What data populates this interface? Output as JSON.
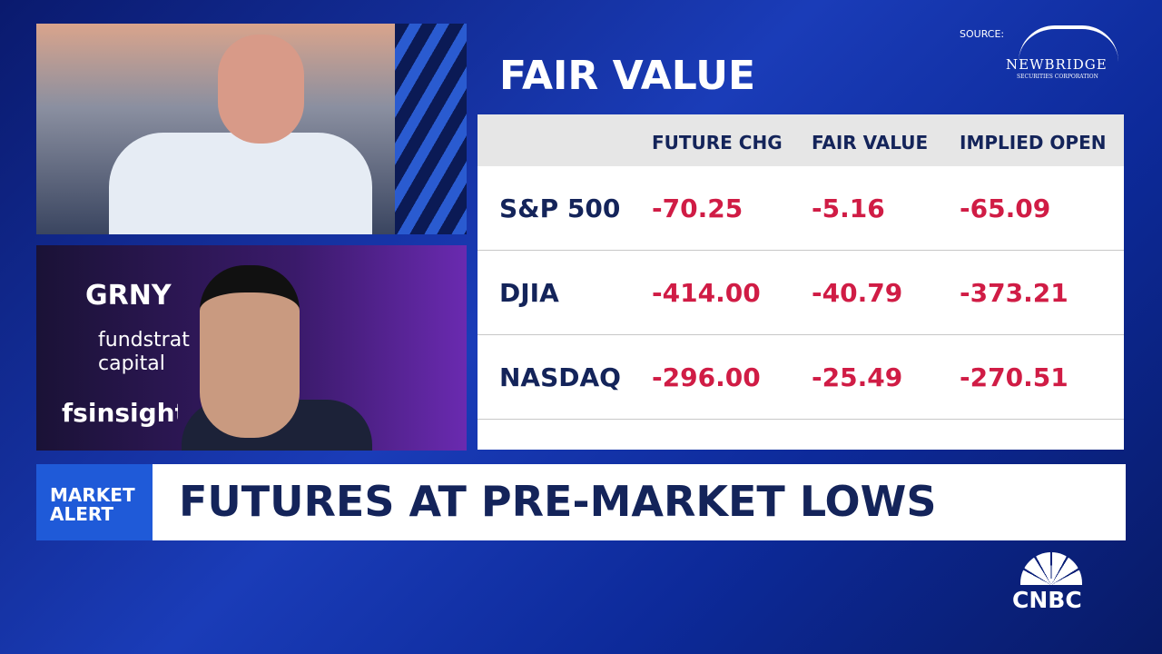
{
  "source_label": "SOURCE:",
  "sponsor": {
    "name": "NEWBRIDGE",
    "tagline": "SECURITIES CORPORATION"
  },
  "panel": {
    "title": "FAIR VALUE",
    "table": {
      "columns": [
        "FUTURE CHG",
        "FAIR VALUE",
        "IMPLIED OPEN"
      ],
      "rows": [
        [
          "S&P 500",
          "-70.25",
          "-5.16",
          "-65.09"
        ],
        [
          "DJIA",
          "-414.00",
          "-40.79",
          "-373.21"
        ],
        [
          "NASDAQ",
          "-296.00",
          "-25.49",
          "-270.51"
        ]
      ]
    }
  },
  "guest_backdrop": {
    "ticker": "GRNY",
    "brand_line1": "fundstrat",
    "brand_line2": "capital",
    "brand2": "fsinsight"
  },
  "banner": {
    "tag_line1": "MARKET",
    "tag_line2": "ALERT",
    "headline": "FUTURES AT PRE-MARKET LOWS"
  },
  "network": "CNBC"
}
